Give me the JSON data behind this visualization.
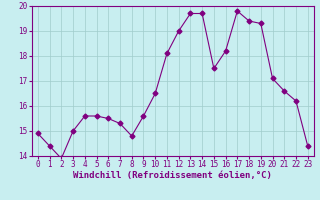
{
  "x": [
    0,
    1,
    2,
    3,
    4,
    5,
    6,
    7,
    8,
    9,
    10,
    11,
    12,
    13,
    14,
    15,
    16,
    17,
    18,
    19,
    20,
    21,
    22,
    23
  ],
  "y": [
    14.9,
    14.4,
    13.9,
    15.0,
    15.6,
    15.6,
    15.5,
    15.3,
    14.8,
    15.6,
    16.5,
    18.1,
    19.0,
    19.7,
    19.7,
    17.5,
    18.2,
    19.8,
    19.4,
    19.3,
    17.1,
    16.6,
    16.2,
    14.4
  ],
  "line_color": "#800080",
  "marker": "D",
  "marker_size": 2.5,
  "bg_color": "#c8eef0",
  "grid_color": "#a0cccc",
  "xlabel": "Windchill (Refroidissement éolien,°C)",
  "xlabel_color": "#800080",
  "ylim": [
    14,
    20
  ],
  "xlim_min": -0.5,
  "xlim_max": 23.5,
  "yticks": [
    14,
    15,
    16,
    17,
    18,
    19,
    20
  ],
  "xticks": [
    0,
    1,
    2,
    3,
    4,
    5,
    6,
    7,
    8,
    9,
    10,
    11,
    12,
    13,
    14,
    15,
    16,
    17,
    18,
    19,
    20,
    21,
    22,
    23
  ],
  "tick_fontsize": 5.5,
  "xlabel_fontsize": 6.5
}
